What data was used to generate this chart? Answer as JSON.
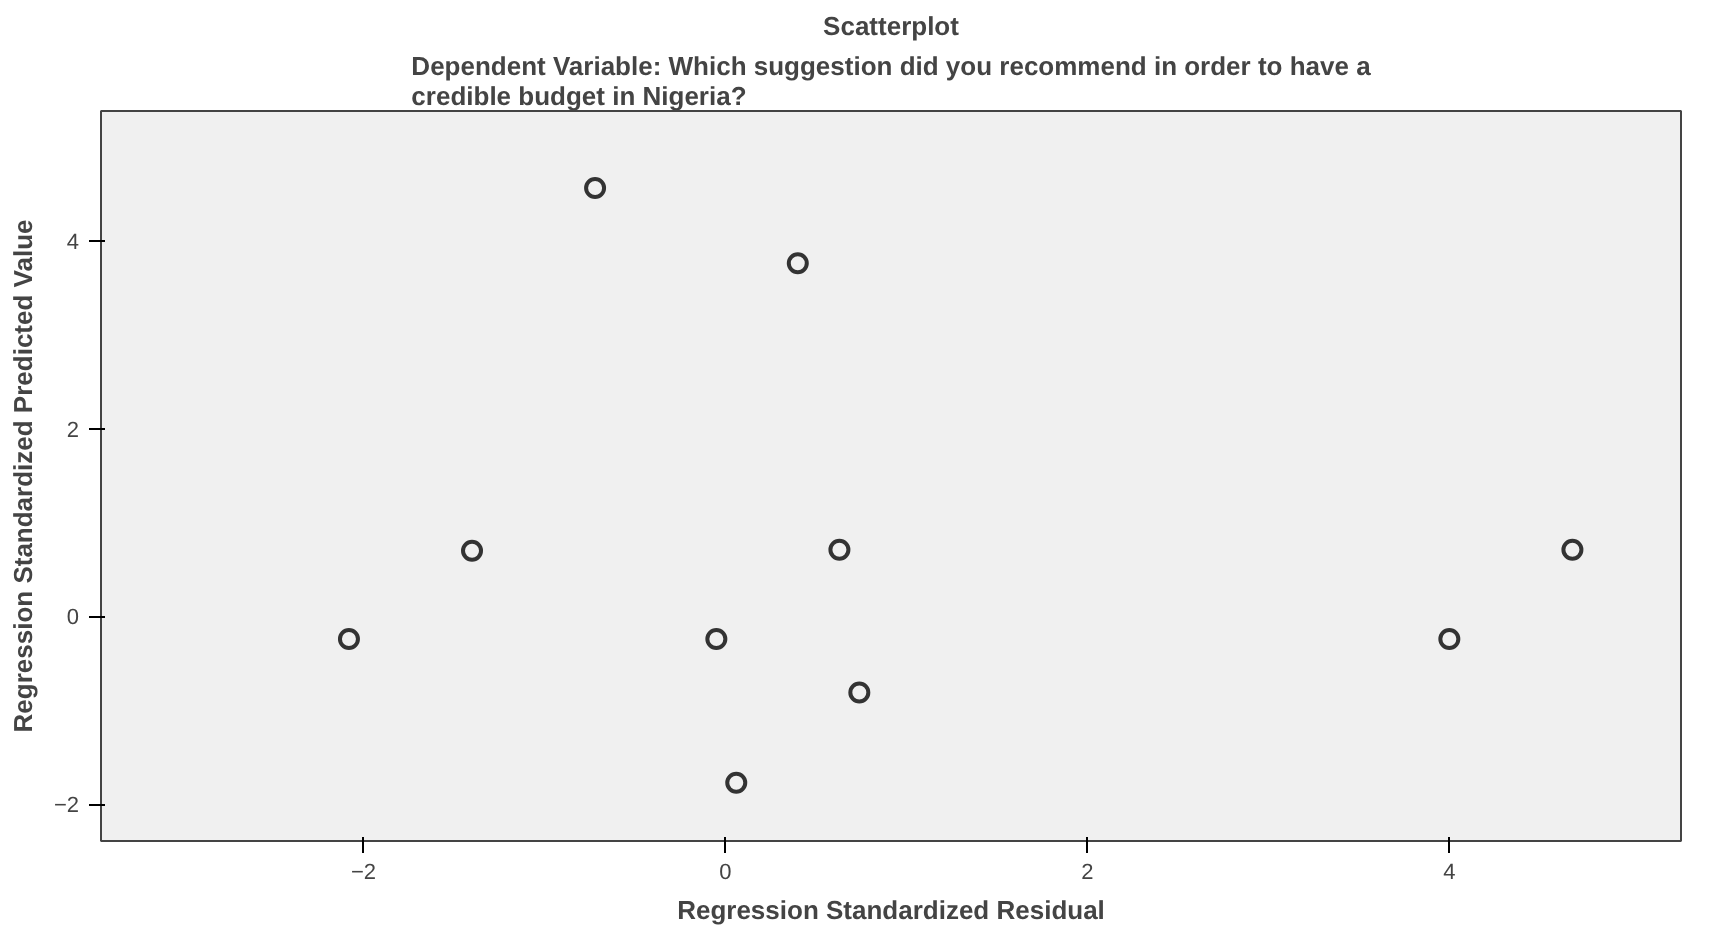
{
  "chart_data": {
    "type": "scatter",
    "title": "Scatterplot",
    "subtitle": "Dependent Variable: Which suggestion did you recommend in order to have a credible budget in Nigeria?",
    "xlabel": "Regression Standardized Residual",
    "ylabel": "Regression Standardized Predicted Value",
    "x": [
      -0.72,
      0.4,
      -1.4,
      -2.08,
      -0.05,
      0.06,
      0.63,
      0.74,
      4.0,
      4.68
    ],
    "series": [
      {
        "color": "#333333",
        "values": [
          4.56,
          3.76,
          0.7,
          -0.24,
          -0.24,
          -1.77,
          0.71,
          -0.81,
          -0.24,
          0.71
        ]
      }
    ],
    "xlim": [
      -3.45,
      5.28
    ],
    "ylim": [
      -2.39,
      5.38
    ],
    "xticks": [
      -2,
      0,
      2,
      4
    ],
    "yticks": [
      -2,
      0,
      2,
      4
    ],
    "grid": false,
    "marker": "circle"
  }
}
